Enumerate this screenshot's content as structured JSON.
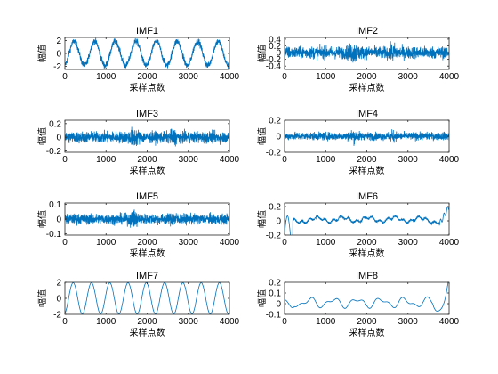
{
  "figure": {
    "background": "#ffffff",
    "line_color": "#0072bd"
  },
  "chart_data": [
    {
      "type": "line",
      "title": "IMF1",
      "xlabel": "采样点数",
      "ylabel": "幅值",
      "xlim": [
        0,
        4000
      ],
      "ylim": [
        -2.5,
        2.5
      ],
      "xticks": [
        0,
        1000,
        2000,
        3000,
        4000
      ],
      "yticks": [
        -2,
        0,
        2
      ],
      "series": [
        {
          "kind": "sine",
          "cycles": 8,
          "amplitude": 1.9,
          "noise": 0.35,
          "samples": 4000
        }
      ]
    },
    {
      "type": "line",
      "title": "IMF2",
      "xlabel": "采样点数",
      "ylabel": "幅值",
      "xlim": [
        0,
        4000
      ],
      "ylim": [
        -0.5,
        0.45
      ],
      "xticks": [
        0,
        1000,
        2000,
        3000,
        4000
      ],
      "yticks": [
        -0.4,
        -0.2,
        0,
        0.2,
        0.4
      ],
      "series": [
        {
          "kind": "noise",
          "scale": 0.13,
          "samples": 4000
        }
      ]
    },
    {
      "type": "line",
      "title": "IMF3",
      "xlabel": "采样点数",
      "ylabel": "幅值",
      "xlim": [
        0,
        4000
      ],
      "ylim": [
        -0.22,
        0.25
      ],
      "xticks": [
        0,
        1000,
        2000,
        3000,
        4000
      ],
      "yticks": [
        -0.2,
        0,
        0.2
      ],
      "series": [
        {
          "kind": "noise",
          "scale": 0.06,
          "samples": 4000
        }
      ]
    },
    {
      "type": "line",
      "title": "IMF4",
      "xlabel": "采样点数",
      "ylabel": "幅值",
      "xlim": [
        0,
        4000
      ],
      "ylim": [
        -0.2,
        0.2
      ],
      "xticks": [
        0,
        1000,
        2000,
        3000,
        4000
      ],
      "yticks": [
        -0.2,
        0,
        0.2
      ],
      "series": [
        {
          "kind": "noise",
          "scale": 0.035,
          "samples": 4000
        }
      ]
    },
    {
      "type": "line",
      "title": "IMF5",
      "xlabel": "采样点数",
      "ylabel": "幅值",
      "xlim": [
        0,
        4000
      ],
      "ylim": [
        -0.11,
        0.11
      ],
      "xticks": [
        0,
        1000,
        2000,
        3000,
        4000
      ],
      "yticks": [
        -0.1,
        0,
        0.1
      ],
      "series": [
        {
          "kind": "noise",
          "scale": 0.025,
          "samples": 4000
        }
      ]
    },
    {
      "type": "line",
      "title": "IMF6",
      "xlabel": "采样点数",
      "ylabel": "幅值",
      "xlim": [
        0,
        4000
      ],
      "ylim": [
        -0.2,
        0.25
      ],
      "xticks": [
        0,
        1000,
        2000,
        3000,
        4000
      ],
      "yticks": [
        -0.2,
        0,
        0.2
      ],
      "series": [
        {
          "kind": "drift",
          "samples": 4000
        }
      ]
    },
    {
      "type": "line",
      "title": "IMF7",
      "xlabel": "采样点数",
      "ylabel": "幅值",
      "xlim": [
        0,
        4000
      ],
      "ylim": [
        -2,
        2
      ],
      "xticks": [
        0,
        1000,
        2000,
        3000,
        4000
      ],
      "yticks": [
        -2,
        0,
        2
      ],
      "series": [
        {
          "kind": "sine",
          "cycles": 9,
          "amplitude": 1.95,
          "noise": 0,
          "samples": 4000
        }
      ]
    },
    {
      "type": "line",
      "title": "IMF8",
      "xlabel": "采样点数",
      "ylabel": "幅值",
      "xlim": [
        0,
        4000
      ],
      "ylim": [
        -0.1,
        0.2
      ],
      "xticks": [
        0,
        1000,
        2000,
        3000,
        4000
      ],
      "yticks": [
        -0.1,
        0,
        0.1,
        0.2
      ],
      "series": [
        {
          "kind": "wave",
          "samples": 4000
        }
      ]
    }
  ]
}
